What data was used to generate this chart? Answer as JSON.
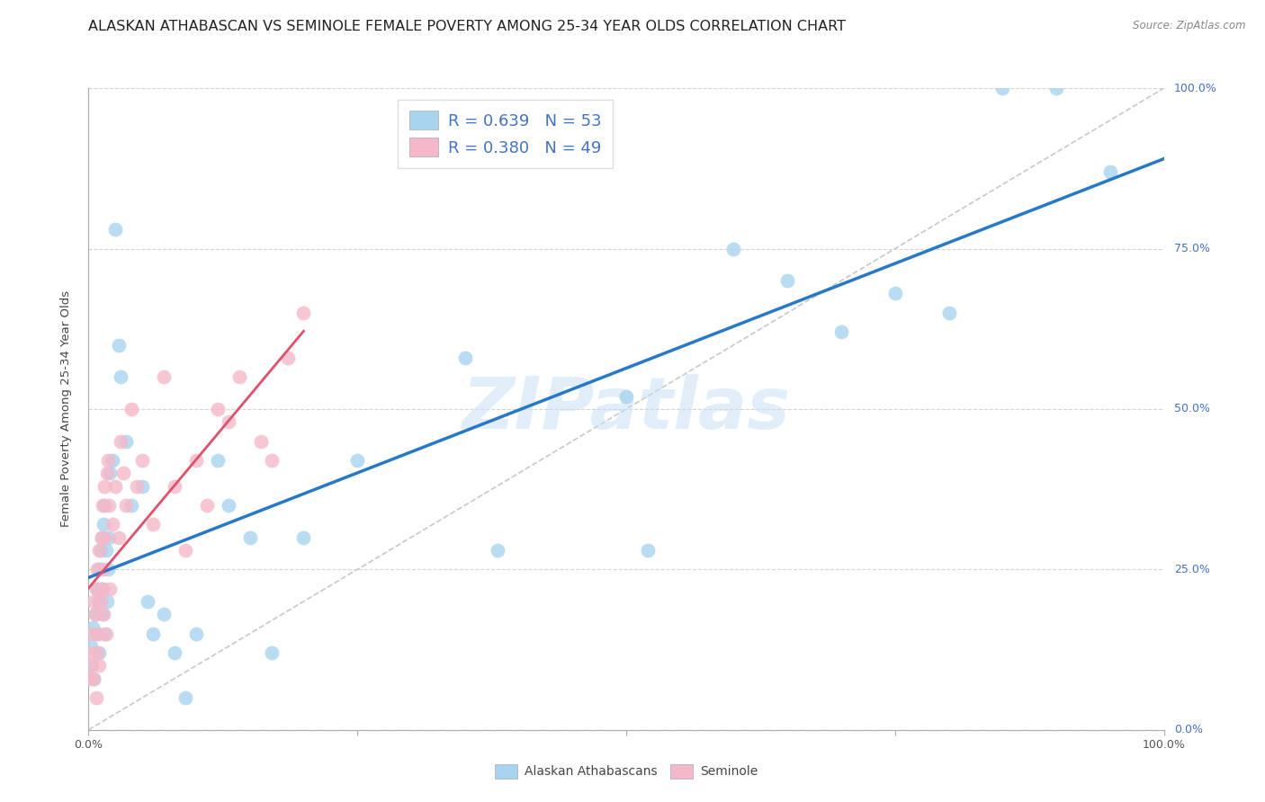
{
  "title": "ALASKAN ATHABASCAN VS SEMINOLE FEMALE POVERTY AMONG 25-34 YEAR OLDS CORRELATION CHART",
  "source": "Source: ZipAtlas.com",
  "ylabel": "Female Poverty Among 25-34 Year Olds",
  "background_color": "#ffffff",
  "grid_color": "#d0d0d0",
  "watermark": "ZIPatlas",
  "legend_r1": "R = 0.639",
  "legend_n1": "N = 53",
  "legend_r2": "R = 0.380",
  "legend_n2": "N = 49",
  "athabascan_color": "#a8d4f0",
  "seminole_color": "#f5b8c8",
  "athabascan_line_color": "#2878c8",
  "seminole_line_color": "#e0506a",
  "diagonal_color": "#c8c8c8",
  "label1": "Alaskan Athabascans",
  "label2": "Seminole",
  "legend_color": "#4472c4",
  "title_fontsize": 11.5,
  "axis_label_fontsize": 9.5,
  "tick_fontsize": 9,
  "legend_fontsize": 13
}
